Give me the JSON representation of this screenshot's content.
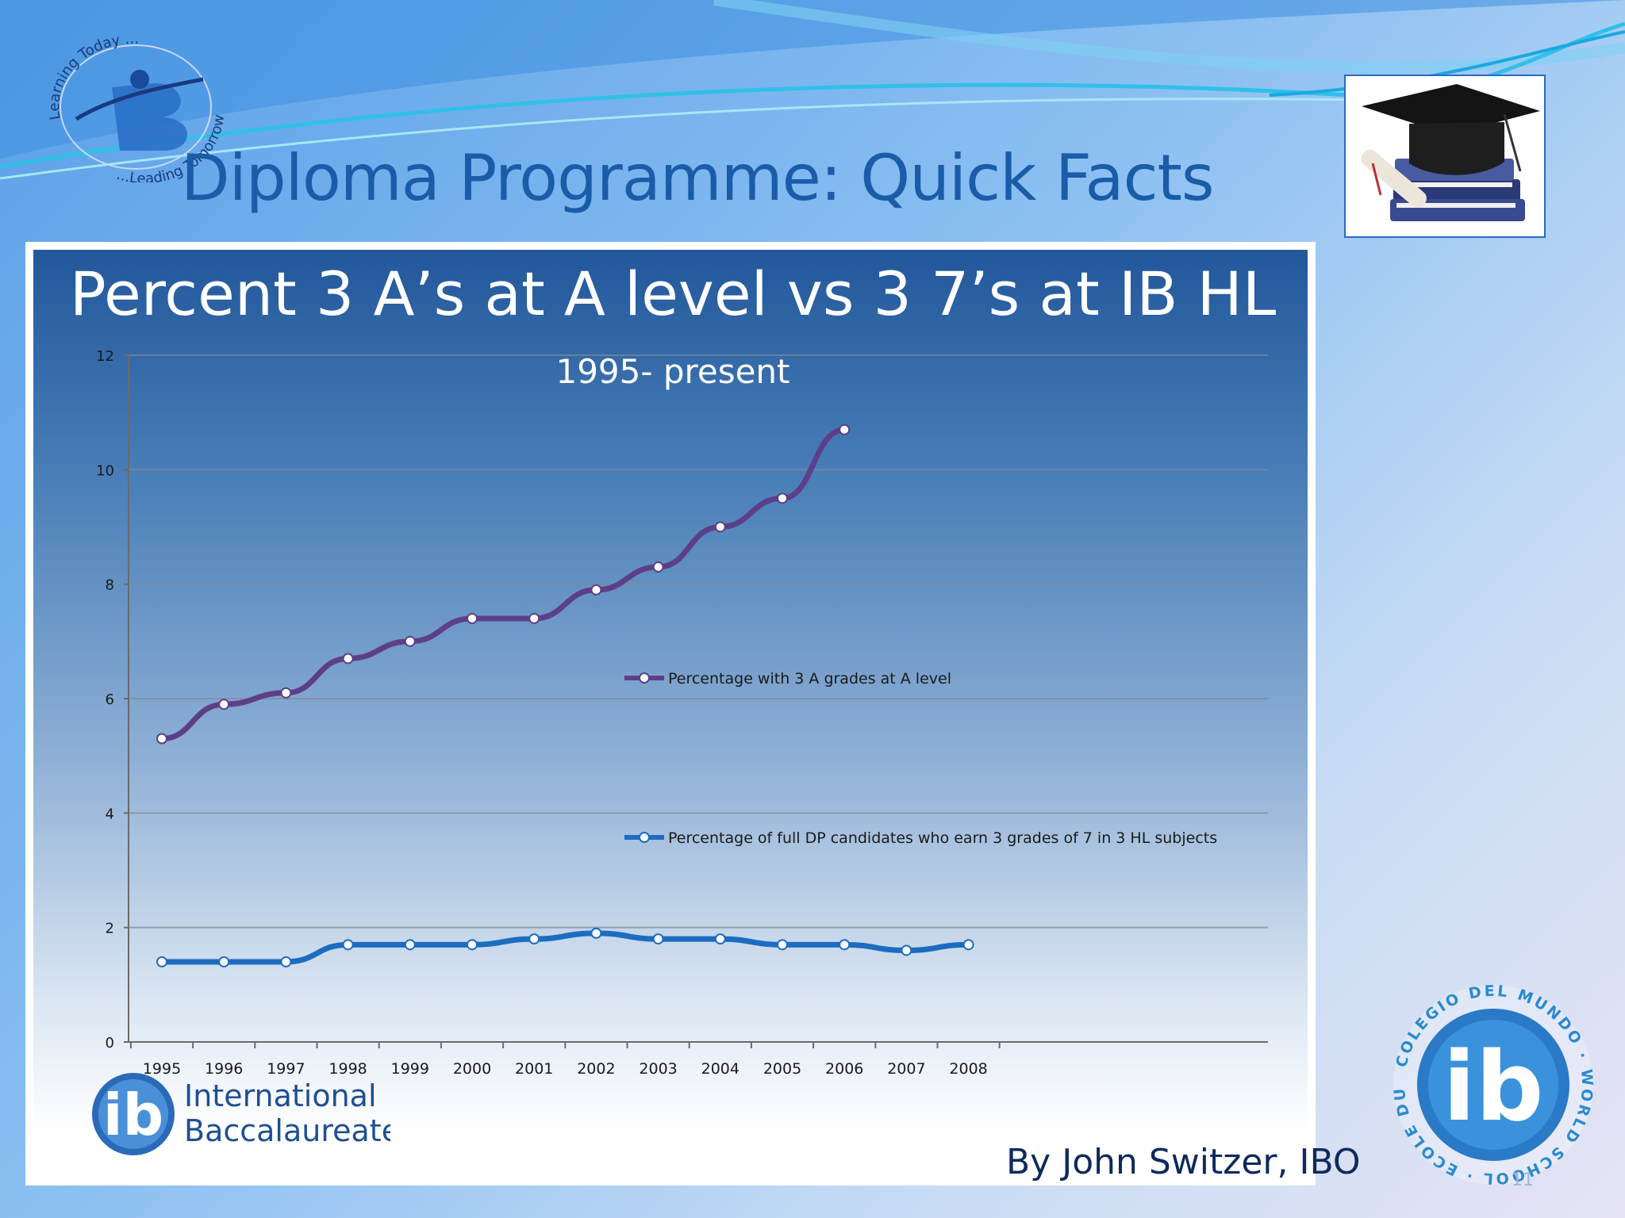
{
  "slide": {
    "title": "Diploma Programme: Quick Facts",
    "credit": "By John Switzer, IBO",
    "page_number": "11"
  },
  "logo_top": {
    "arc_text_top": "Learning Today ...",
    "arc_text_bottom": "...Leading Tomorrow"
  },
  "ib_logo": {
    "line1": "International",
    "line2": "Baccalaureate"
  },
  "ib_world_seal": {
    "ring_text": "COLEGIO DEL MUNDO · WORLD SCHOOL · ECOLE DU MONDE",
    "mark": "ib"
  },
  "chart_data": {
    "type": "line",
    "title": "Percent 3 A’s at A level vs 3 7’s at IB HL",
    "subtitle": "1995- present",
    "x": [
      "1995",
      "1996",
      "1997",
      "1998",
      "1999",
      "2000",
      "2001",
      "2002",
      "2003",
      "2004",
      "2005",
      "2006",
      "2007",
      "2008"
    ],
    "ylim": [
      0,
      12
    ],
    "yticks": [
      "0",
      "2",
      "4",
      "6",
      "8",
      "10",
      "12"
    ],
    "grid": true,
    "series": [
      {
        "name": "Percentage with 3 A grades at A level",
        "color": "#5d3f88",
        "values": [
          5.3,
          5.9,
          6.1,
          6.7,
          7.0,
          7.4,
          7.4,
          7.9,
          8.3,
          9.0,
          9.5,
          10.7,
          null,
          null
        ]
      },
      {
        "name": "Percentage of full DP candidates who earn 3 grades of 7 in 3 HL subjects",
        "color": "#1c6cc0",
        "values": [
          1.4,
          1.4,
          1.4,
          1.7,
          1.7,
          1.7,
          1.8,
          1.9,
          1.8,
          1.8,
          1.7,
          1.7,
          1.6,
          1.7
        ]
      }
    ]
  }
}
